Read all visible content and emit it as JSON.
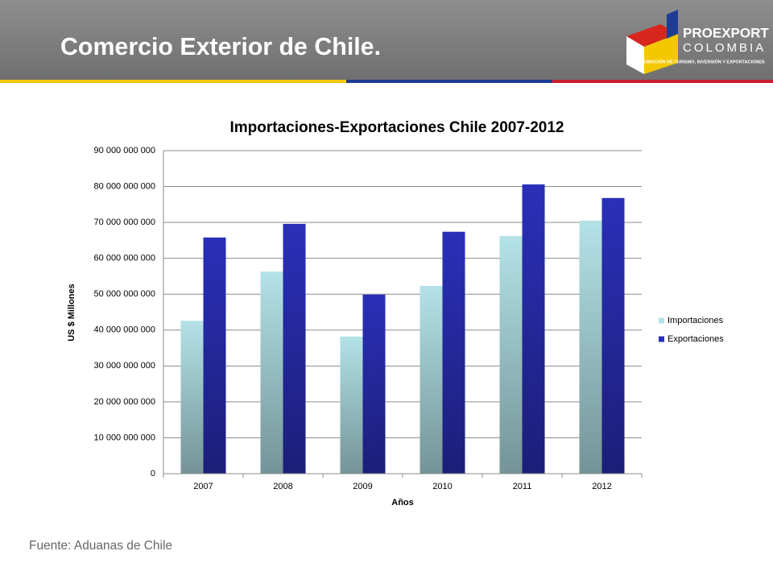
{
  "header": {
    "title": "Comercio Exterior de Chile.",
    "logo_name": "PROEXPORT",
    "logo_country": "COLOMBIA",
    "logo_tagline": "PROMOCIÓN DE TURISMO, INVERSIÓN Y EXPORTACIONES"
  },
  "chart_data": {
    "type": "bar",
    "title": "Importaciones-Exportaciones Chile 2007-2012",
    "x_label": "Años",
    "y_label": "US $ Millones",
    "categories": [
      "2007",
      "2008",
      "2009",
      "2010",
      "2011",
      "2012"
    ],
    "series": [
      {
        "name": "Importaciones",
        "color": "#b3e2e8",
        "values": [
          42600000000,
          56300000000,
          38200000000,
          52300000000,
          66200000000,
          70500000000
        ]
      },
      {
        "name": "Exportaciones",
        "color": "#2a2fb8",
        "values": [
          65800000000,
          69600000000,
          49900000000,
          67400000000,
          80600000000,
          76800000000
        ]
      }
    ],
    "ylim": [
      0,
      90000000000
    ],
    "yticks": [
      0,
      {
        "value": 10000000000,
        "label": "10 000 000 000"
      },
      {
        "value": 20000000000,
        "label": "20 000 000 000"
      },
      {
        "value": 30000000000,
        "label": "30 000 000 000"
      },
      {
        "value": 40000000000,
        "label": "40 000 000 000"
      },
      {
        "value": 50000000000,
        "label": "50 000 000 000"
      },
      {
        "value": 60000000000,
        "label": "60 000 000 000"
      },
      {
        "value": 70000000000,
        "label": "70 000 000 000"
      },
      {
        "value": 80000000000,
        "label": "80 000 000 000"
      },
      {
        "value": 90000000000,
        "label": "90 000 000 000"
      }
    ],
    "grid": true,
    "legend": "right"
  },
  "footer": {
    "source": "Fuente: Aduanas de Chile"
  }
}
